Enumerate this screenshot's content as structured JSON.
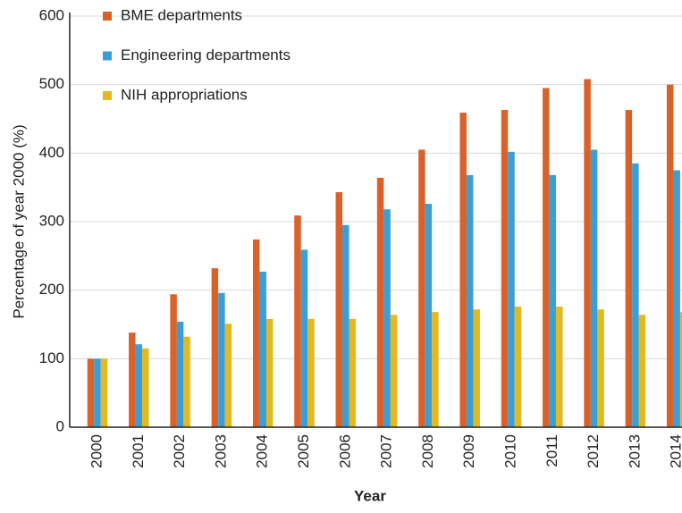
{
  "chart_data": {
    "type": "bar",
    "xlabel": "Year",
    "ylabel": "Percentage of year 2000 (%)",
    "categories": [
      "2000",
      "2001",
      "2002",
      "2003",
      "2004",
      "2005",
      "2006",
      "2007",
      "2008",
      "2009",
      "2010",
      "2011",
      "2012",
      "2013",
      "2014"
    ],
    "series": [
      {
        "name": "BME departments",
        "color": "#d9622b",
        "values": [
          100,
          138,
          194,
          232,
          274,
          309,
          343,
          364,
          405,
          459,
          463,
          495,
          508,
          463,
          500
        ]
      },
      {
        "name": "Engineering departments",
        "color": "#3a9fd6",
        "values": [
          100,
          121,
          154,
          196,
          227,
          259,
          295,
          318,
          326,
          368,
          402,
          368,
          405,
          385,
          375
        ]
      },
      {
        "name": "NIH appropriations",
        "color": "#e3b91f",
        "values": [
          100,
          115,
          132,
          151,
          158,
          158,
          158,
          164,
          168,
          172,
          176,
          176,
          172,
          164,
          168
        ]
      }
    ],
    "ylim": [
      0,
      600
    ],
    "yticks": [
      0,
      100,
      200,
      300,
      400,
      500,
      600
    ],
    "grid": true,
    "legend": "upper left"
  }
}
